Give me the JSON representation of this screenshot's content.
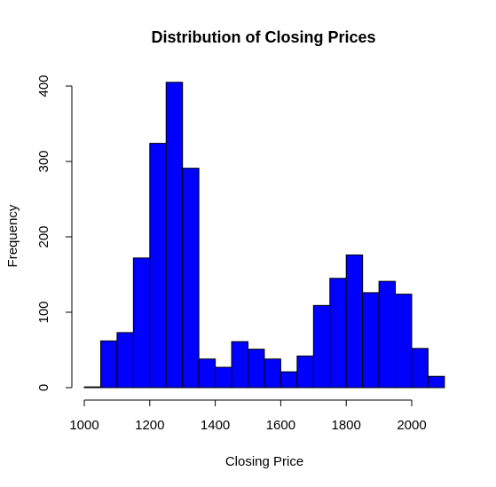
{
  "chart_data": {
    "type": "bar",
    "title": "Distribution of Closing Prices",
    "xlabel": "Closing Price",
    "ylabel": "Frequency",
    "xlim": [
      1000,
      2100
    ],
    "ylim": [
      0,
      400
    ],
    "x_ticks": [
      1000,
      1200,
      1400,
      1600,
      1800,
      2000
    ],
    "y_ticks": [
      0,
      100,
      200,
      300,
      400
    ],
    "grid": false,
    "legend": "none",
    "bar_color": "#0000ff",
    "bar_edge_color": "#000000",
    "bins": [
      {
        "start": 1000,
        "end": 1050,
        "value": 1
      },
      {
        "start": 1050,
        "end": 1100,
        "value": 62
      },
      {
        "start": 1100,
        "end": 1150,
        "value": 73
      },
      {
        "start": 1150,
        "end": 1200,
        "value": 172
      },
      {
        "start": 1200,
        "end": 1250,
        "value": 324
      },
      {
        "start": 1250,
        "end": 1300,
        "value": 405
      },
      {
        "start": 1300,
        "end": 1350,
        "value": 291
      },
      {
        "start": 1350,
        "end": 1400,
        "value": 38
      },
      {
        "start": 1400,
        "end": 1450,
        "value": 27
      },
      {
        "start": 1450,
        "end": 1500,
        "value": 61
      },
      {
        "start": 1500,
        "end": 1550,
        "value": 51
      },
      {
        "start": 1550,
        "end": 1600,
        "value": 38
      },
      {
        "start": 1600,
        "end": 1650,
        "value": 21
      },
      {
        "start": 1650,
        "end": 1700,
        "value": 42
      },
      {
        "start": 1700,
        "end": 1750,
        "value": 109
      },
      {
        "start": 1750,
        "end": 1800,
        "value": 145
      },
      {
        "start": 1800,
        "end": 1850,
        "value": 176
      },
      {
        "start": 1850,
        "end": 1900,
        "value": 126
      },
      {
        "start": 1900,
        "end": 1950,
        "value": 141
      },
      {
        "start": 1950,
        "end": 2000,
        "value": 124
      },
      {
        "start": 2000,
        "end": 2050,
        "value": 52
      },
      {
        "start": 2050,
        "end": 2100,
        "value": 15
      }
    ]
  }
}
